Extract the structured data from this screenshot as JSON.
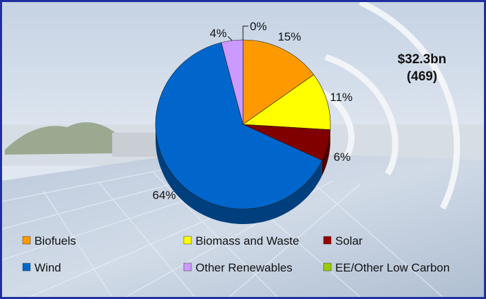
{
  "chart_data": {
    "type": "pie",
    "total_label_line1": "$32.3bn",
    "total_label_line2": "(469)",
    "slices": [
      {
        "name": "EE/Other Low Carbon",
        "value": 0,
        "label": "0%",
        "color": "#a6d05a"
      },
      {
        "name": "Biofuels",
        "value": 15,
        "label": "15%",
        "color": "#ff9900"
      },
      {
        "name": "Biomass and Waste",
        "value": 11,
        "label": "11%",
        "color": "#ffff00"
      },
      {
        "name": "Solar",
        "value": 6,
        "label": "6%",
        "color": "#800000"
      },
      {
        "name": "Wind",
        "value": 64,
        "label": "64%",
        "color": "#0066cc"
      },
      {
        "name": "Other Renewables",
        "value": 4,
        "label": "4%",
        "color": "#cc99ff"
      }
    ],
    "legend": [
      {
        "label": "Biofuels",
        "color": "#ff9900"
      },
      {
        "label": "Biomass and Waste",
        "color": "#ffff00"
      },
      {
        "label": "Solar",
        "color": "#990000"
      },
      {
        "label": "Wind",
        "color": "#0066cc"
      },
      {
        "label": "Other Renewables",
        "color": "#cc99ff"
      },
      {
        "label": "EE/Other Low Carbon",
        "color": "#99cc00"
      }
    ],
    "legend_position": "bottom"
  }
}
